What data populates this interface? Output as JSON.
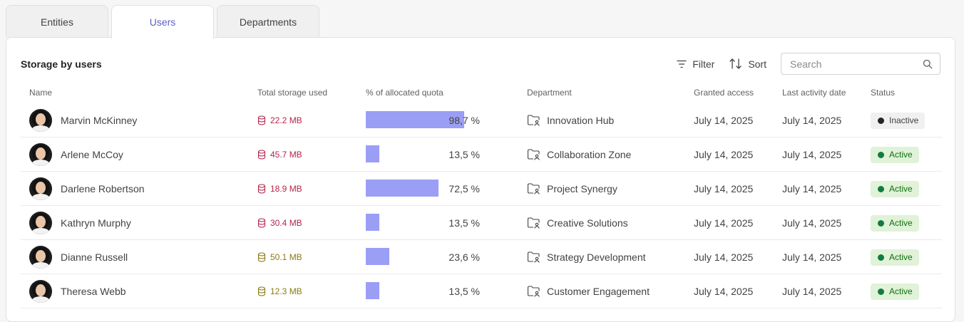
{
  "tabs": [
    {
      "label": "Entities",
      "active": false
    },
    {
      "label": "Users",
      "active": true
    },
    {
      "label": "Departments",
      "active": false
    }
  ],
  "panel": {
    "title": "Storage by users",
    "filter_label": "Filter",
    "sort_label": "Sort",
    "search_placeholder": "Search"
  },
  "columns": {
    "name": "Name",
    "storage": "Total storage used",
    "quota": "% of allocated quota",
    "department": "Department",
    "granted": "Granted access",
    "last_activity": "Last activity date",
    "status": "Status"
  },
  "colors": {
    "accent": "#5b5fc7",
    "quota_bar": "#9b9ef5",
    "storage_red": "#b4254d",
    "storage_olive": "#8a7a10",
    "active_badge_bg": "#e0f2d8",
    "active_badge_text": "#0e700e"
  },
  "rows": [
    {
      "name": "Marvin McKinney",
      "storage": "22.2 MB",
      "storage_color": "red",
      "quota_pct": 98.7,
      "quota_label": "98,7 %",
      "department": "Innovation Hub",
      "granted": "July 14, 2025",
      "last_activity": "July 14, 2025",
      "status": "Inactive",
      "status_kind": "inactive"
    },
    {
      "name": "Arlene McCoy",
      "storage": "45.7 MB",
      "storage_color": "red",
      "quota_pct": 13.5,
      "quota_label": "13,5 %",
      "department": "Collaboration Zone",
      "granted": "July 14, 2025",
      "last_activity": "July 14, 2025",
      "status": "Active",
      "status_kind": "active"
    },
    {
      "name": "Darlene Robertson",
      "storage": "18.9 MB",
      "storage_color": "red",
      "quota_pct": 72.5,
      "quota_label": "72,5 %",
      "department": "Project Synergy",
      "granted": "July 14, 2025",
      "last_activity": "July 14, 2025",
      "status": "Active",
      "status_kind": "active"
    },
    {
      "name": "Kathryn Murphy",
      "storage": "30.4 MB",
      "storage_color": "red",
      "quota_pct": 13.5,
      "quota_label": "13,5 %",
      "department": "Creative Solutions",
      "granted": "July 14, 2025",
      "last_activity": "July 14, 2025",
      "status": "Active",
      "status_kind": "active"
    },
    {
      "name": "Dianne Russell",
      "storage": "50.1 MB",
      "storage_color": "olive",
      "quota_pct": 23.6,
      "quota_label": "23,6 %",
      "department": "Strategy Development",
      "granted": "July 14, 2025",
      "last_activity": "July 14, 2025",
      "status": "Active",
      "status_kind": "active"
    },
    {
      "name": "Theresa Webb",
      "storage": "12.3 MB",
      "storage_color": "olive",
      "quota_pct": 13.5,
      "quota_label": "13,5 %",
      "department": "Customer Engagement",
      "granted": "July 14, 2025",
      "last_activity": "July 14, 2025",
      "status": "Active",
      "status_kind": "active"
    }
  ]
}
